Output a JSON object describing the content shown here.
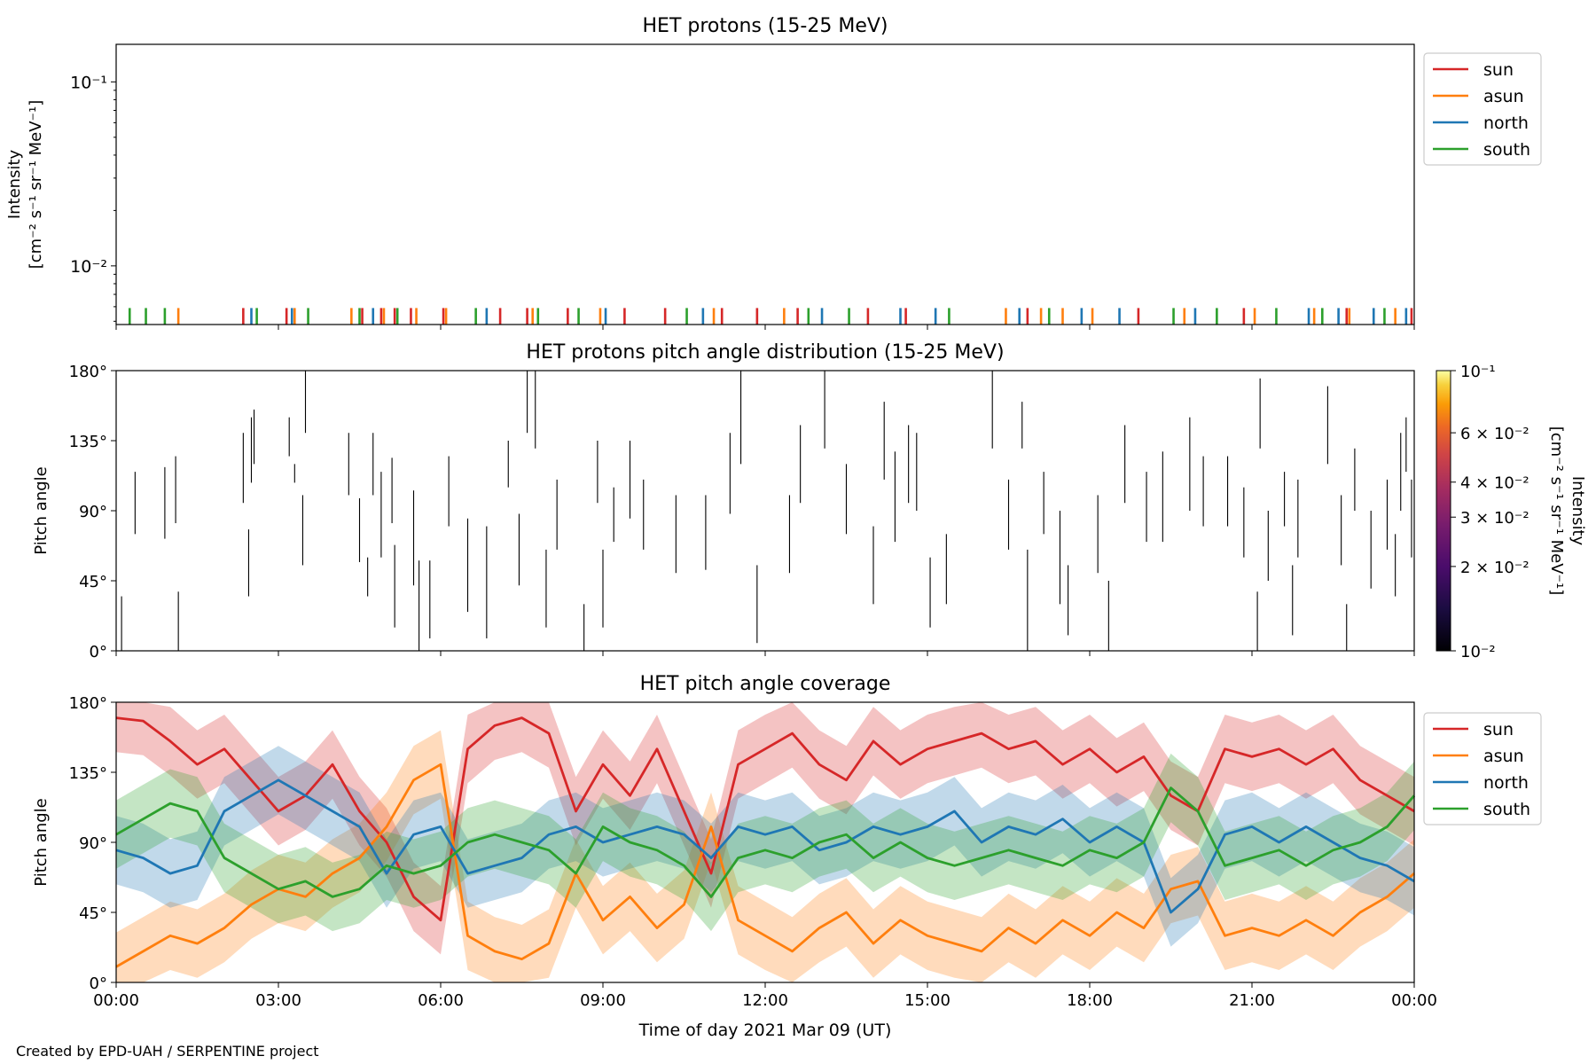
{
  "credit": "Created by EPD-UAH / SERPENTINE project",
  "colors": {
    "sun": "#d62728",
    "asun": "#ff7f0e",
    "north": "#1f77b4",
    "south": "#2ca02c",
    "marker": "#000000"
  },
  "chart_data": [
    {
      "type": "line",
      "panel": "intensity",
      "title": "HET protons (15-25 MeV)",
      "ylabel_lines": [
        "Intensity",
        "[cm⁻² s⁻¹ sr⁻¹ MeV⁻¹]"
      ],
      "yscale": "log",
      "ylim": [
        0.0048,
        0.16
      ],
      "ytick_values": [
        0.01,
        0.1
      ],
      "ytick_labels": [
        "10⁻²",
        "10⁻¹"
      ],
      "legend": [
        "sun",
        "asun",
        "north",
        "south"
      ],
      "legend_placement": "outside-right-top",
      "note": "only sparse spike values near the lower axis limit are visible",
      "series": [
        {
          "name": "sun",
          "color": "#d62728",
          "spike_times_h": [
            2.35,
            3.15,
            4.55,
            4.9,
            5.15,
            5.45,
            6.05,
            7.1,
            7.6,
            8.35,
            9.4,
            10.15,
            11.2,
            11.85,
            12.6,
            13.9,
            14.6,
            16.85,
            18.9,
            20.85,
            22.75,
            23.95
          ]
        },
        {
          "name": "asun",
          "color": "#ff7f0e",
          "spike_times_h": [
            1.15,
            3.3,
            4.35,
            4.95,
            5.55,
            6.1,
            7.7,
            8.95,
            11.05,
            12.35,
            16.45,
            17.1,
            17.5,
            18.05,
            19.75,
            21.05,
            22.15,
            22.8,
            23.65
          ]
        },
        {
          "name": "north",
          "color": "#1f77b4",
          "spike_times_h": [
            2.5,
            3.25,
            4.75,
            6.85,
            9.05,
            10.85,
            13.05,
            14.5,
            15.15,
            16.7,
            17.85,
            18.55,
            19.95,
            22.05,
            22.6,
            23.25,
            23.85
          ]
        },
        {
          "name": "south",
          "color": "#2ca02c",
          "spike_times_h": [
            0.25,
            0.55,
            0.9,
            2.6,
            3.55,
            4.5,
            5.2,
            6.65,
            7.8,
            8.55,
            10.55,
            12.8,
            13.55,
            15.4,
            17.25,
            19.55,
            20.35,
            21.45,
            22.3,
            23.45
          ]
        }
      ]
    },
    {
      "type": "heatmap",
      "panel": "pitch_angle_distribution",
      "title": "HET protons pitch angle distribution (15-25 MeV)",
      "ylabel": "Pitch angle",
      "ylim": [
        0,
        180
      ],
      "ytick_values": [
        0,
        45,
        90,
        135,
        180
      ],
      "ytick_labels": [
        "0°",
        "45°",
        "90°",
        "135°",
        "180°"
      ],
      "colorbar": {
        "label_lines": [
          "Intensity",
          "[cm⁻² s⁻¹ sr⁻¹ MeV⁻¹]"
        ],
        "scale": "log",
        "range": [
          0.01,
          0.1
        ],
        "tick_values": [
          0.01,
          0.02,
          0.03,
          0.04,
          0.06,
          0.1
        ],
        "tick_labels": [
          "10⁻²",
          "2 × 10⁻²",
          "3 × 10⁻²",
          "4 × 10⁻²",
          "6 × 10⁻²",
          "10⁻¹"
        ],
        "colormap": "inferno"
      },
      "segments": [
        [
          0.1,
          0,
          35
        ],
        [
          0.35,
          75,
          115
        ],
        [
          0.9,
          72,
          118
        ],
        [
          1.15,
          0,
          38
        ],
        [
          1.1,
          82,
          125
        ],
        [
          2.35,
          95,
          140
        ],
        [
          2.5,
          108,
          150
        ],
        [
          2.55,
          120,
          155
        ],
        [
          2.45,
          35,
          78
        ],
        [
          3.2,
          125,
          150
        ],
        [
          3.3,
          108,
          120
        ],
        [
          3.45,
          55,
          100
        ],
        [
          3.5,
          140,
          180
        ],
        [
          4.3,
          100,
          140
        ],
        [
          4.5,
          57,
          98
        ],
        [
          4.65,
          35,
          60
        ],
        [
          4.75,
          100,
          140
        ],
        [
          4.9,
          60,
          115
        ],
        [
          5.1,
          82,
          124
        ],
        [
          5.15,
          15,
          68
        ],
        [
          5.5,
          42,
          103
        ],
        [
          5.6,
          0,
          58
        ],
        [
          5.8,
          8,
          58
        ],
        [
          6.15,
          80,
          125
        ],
        [
          6.5,
          25,
          85
        ],
        [
          6.85,
          8,
          80
        ],
        [
          7.25,
          105,
          135
        ],
        [
          7.45,
          42,
          88
        ],
        [
          7.6,
          140,
          180
        ],
        [
          7.75,
          130,
          180
        ],
        [
          7.95,
          15,
          65
        ],
        [
          8.15,
          65,
          110
        ],
        [
          8.65,
          0,
          30
        ],
        [
          8.9,
          95,
          135
        ],
        [
          9.0,
          15,
          65
        ],
        [
          9.2,
          70,
          105
        ],
        [
          9.5,
          85,
          135
        ],
        [
          9.75,
          65,
          110
        ],
        [
          10.35,
          50,
          100
        ],
        [
          10.9,
          52,
          100
        ],
        [
          11.35,
          88,
          140
        ],
        [
          11.55,
          120,
          180
        ],
        [
          11.85,
          5,
          55
        ],
        [
          12.45,
          50,
          100
        ],
        [
          12.65,
          95,
          145
        ],
        [
          13.1,
          130,
          180
        ],
        [
          13.5,
          75,
          120
        ],
        [
          14.0,
          30,
          80
        ],
        [
          14.2,
          110,
          160
        ],
        [
          14.4,
          70,
          128
        ],
        [
          14.65,
          95,
          145
        ],
        [
          14.8,
          90,
          140
        ],
        [
          15.05,
          15,
          60
        ],
        [
          15.35,
          30,
          75
        ],
        [
          16.2,
          130,
          180
        ],
        [
          16.5,
          65,
          110
        ],
        [
          16.75,
          130,
          160
        ],
        [
          16.85,
          0,
          65
        ],
        [
          17.15,
          75,
          115
        ],
        [
          17.45,
          30,
          90
        ],
        [
          17.6,
          10,
          55
        ],
        [
          18.15,
          50,
          100
        ],
        [
          18.35,
          0,
          45
        ],
        [
          18.65,
          95,
          145
        ],
        [
          19.05,
          70,
          115
        ],
        [
          19.35,
          70,
          128
        ],
        [
          19.85,
          90,
          150
        ],
        [
          20.1,
          80,
          125
        ],
        [
          20.55,
          80,
          125
        ],
        [
          20.85,
          60,
          105
        ],
        [
          21.1,
          0,
          38
        ],
        [
          21.15,
          130,
          175
        ],
        [
          21.3,
          45,
          90
        ],
        [
          21.6,
          80,
          115
        ],
        [
          21.75,
          10,
          55
        ],
        [
          21.85,
          60,
          110
        ],
        [
          22.4,
          120,
          170
        ],
        [
          22.65,
          55,
          100
        ],
        [
          22.75,
          0,
          30
        ],
        [
          22.9,
          90,
          130
        ],
        [
          23.2,
          40,
          90
        ],
        [
          23.5,
          65,
          110
        ],
        [
          23.65,
          35,
          75
        ],
        [
          23.75,
          90,
          140
        ],
        [
          23.85,
          115,
          150
        ],
        [
          23.95,
          60,
          110
        ]
      ]
    },
    {
      "type": "line",
      "panel": "pitch_angle_coverage",
      "title": "HET pitch angle coverage",
      "ylabel": "Pitch angle",
      "xlabel": "Time of day 2021 Mar 09 (UT)",
      "xlim": [
        0,
        24
      ],
      "xtick_values": [
        0,
        3,
        6,
        9,
        12,
        15,
        18,
        21,
        24
      ],
      "xtick_labels": [
        "00:00",
        "03:00",
        "06:00",
        "09:00",
        "12:00",
        "15:00",
        "18:00",
        "21:00",
        "00:00"
      ],
      "ylim": [
        0,
        180
      ],
      "ytick_values": [
        0,
        45,
        90,
        135,
        180
      ],
      "ytick_labels": [
        "0°",
        "45°",
        "90°",
        "135°",
        "180°"
      ],
      "legend": [
        "sun",
        "asun",
        "north",
        "south"
      ],
      "legend_placement": "outside-right-top",
      "band_halfwidth_deg": 22,
      "series": [
        {
          "name": "sun",
          "color": "#d62728",
          "x": [
            0,
            0.5,
            1,
            1.5,
            2,
            2.5,
            3,
            3.5,
            4,
            4.5,
            5,
            5.5,
            6,
            6.5,
            7,
            7.5,
            8,
            8.5,
            9,
            9.5,
            10,
            10.5,
            11,
            11.5,
            12,
            12.5,
            13,
            13.5,
            14,
            14.5,
            15,
            15.5,
            16,
            16.5,
            17,
            17.5,
            18,
            18.5,
            19,
            19.5,
            20,
            20.5,
            21,
            21.5,
            22,
            22.5,
            23,
            23.5,
            24
          ],
          "y": [
            170,
            168,
            155,
            140,
            150,
            130,
            110,
            120,
            140,
            110,
            90,
            55,
            40,
            150,
            165,
            170,
            160,
            110,
            140,
            120,
            150,
            110,
            70,
            140,
            150,
            160,
            140,
            130,
            155,
            140,
            150,
            155,
            160,
            150,
            155,
            140,
            150,
            135,
            145,
            120,
            110,
            150,
            145,
            150,
            140,
            150,
            130,
            120,
            110
          ]
        },
        {
          "name": "asun",
          "color": "#ff7f0e",
          "x": [
            0,
            0.5,
            1,
            1.5,
            2,
            2.5,
            3,
            3.5,
            4,
            4.5,
            5,
            5.5,
            6,
            6.5,
            7,
            7.5,
            8,
            8.5,
            9,
            9.5,
            10,
            10.5,
            11,
            11.5,
            12,
            12.5,
            13,
            13.5,
            14,
            14.5,
            15,
            15.5,
            16,
            16.5,
            17,
            17.5,
            18,
            18.5,
            19,
            19.5,
            20,
            20.5,
            21,
            21.5,
            22,
            22.5,
            23,
            23.5,
            24
          ],
          "y": [
            10,
            20,
            30,
            25,
            35,
            50,
            60,
            55,
            70,
            80,
            100,
            130,
            140,
            30,
            20,
            15,
            25,
            70,
            40,
            55,
            35,
            50,
            100,
            40,
            30,
            20,
            35,
            45,
            25,
            40,
            30,
            25,
            20,
            35,
            25,
            40,
            30,
            45,
            35,
            60,
            65,
            30,
            35,
            30,
            40,
            30,
            45,
            55,
            70
          ]
        },
        {
          "name": "north",
          "color": "#1f77b4",
          "x": [
            0,
            0.5,
            1,
            1.5,
            2,
            2.5,
            3,
            3.5,
            4,
            4.5,
            5,
            5.5,
            6,
            6.5,
            7,
            7.5,
            8,
            8.5,
            9,
            9.5,
            10,
            10.5,
            11,
            11.5,
            12,
            12.5,
            13,
            13.5,
            14,
            14.5,
            15,
            15.5,
            16,
            16.5,
            17,
            17.5,
            18,
            18.5,
            19,
            19.5,
            20,
            20.5,
            21,
            21.5,
            22,
            22.5,
            23,
            23.5,
            24
          ],
          "y": [
            85,
            80,
            70,
            75,
            110,
            120,
            130,
            120,
            110,
            100,
            70,
            95,
            100,
            70,
            75,
            80,
            95,
            100,
            90,
            95,
            100,
            95,
            80,
            100,
            95,
            100,
            85,
            90,
            100,
            95,
            100,
            110,
            90,
            100,
            95,
            105,
            90,
            100,
            90,
            45,
            60,
            95,
            100,
            90,
            100,
            90,
            80,
            75,
            65
          ]
        },
        {
          "name": "south",
          "color": "#2ca02c",
          "x": [
            0,
            0.5,
            1,
            1.5,
            2,
            2.5,
            3,
            3.5,
            4,
            4.5,
            5,
            5.5,
            6,
            6.5,
            7,
            7.5,
            8,
            8.5,
            9,
            9.5,
            10,
            10.5,
            11,
            11.5,
            12,
            12.5,
            13,
            13.5,
            14,
            14.5,
            15,
            15.5,
            16,
            16.5,
            17,
            17.5,
            18,
            18.5,
            19,
            19.5,
            20,
            20.5,
            21,
            21.5,
            22,
            22.5,
            23,
            23.5,
            24
          ],
          "y": [
            95,
            105,
            115,
            110,
            80,
            70,
            60,
            65,
            55,
            60,
            75,
            70,
            75,
            90,
            95,
            90,
            85,
            70,
            100,
            90,
            85,
            75,
            55,
            80,
            85,
            80,
            90,
            95,
            80,
            90,
            80,
            75,
            80,
            85,
            80,
            75,
            85,
            80,
            90,
            125,
            110,
            75,
            80,
            85,
            75,
            85,
            90,
            100,
            120
          ]
        }
      ]
    }
  ]
}
